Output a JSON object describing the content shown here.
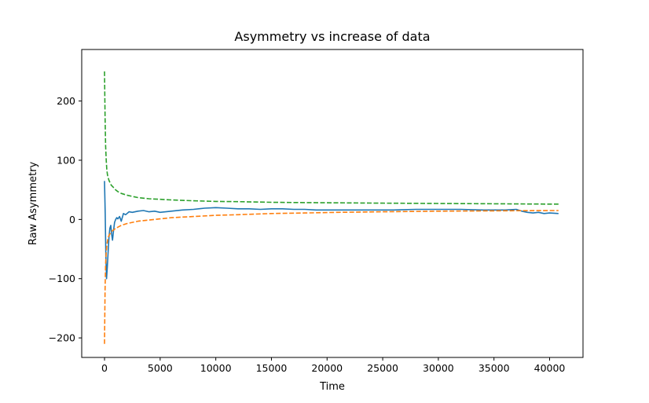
{
  "chart_data": {
    "type": "line",
    "title": "Asymmetry vs increase of data",
    "xlabel": "Time",
    "ylabel": "Raw Asymmetry",
    "xlim": [
      -2050,
      43000
    ],
    "ylim": [
      -233,
      287
    ],
    "xticks": [
      0,
      5000,
      10000,
      15000,
      20000,
      25000,
      30000,
      35000,
      40000
    ],
    "yticks": [
      -200,
      -100,
      0,
      100,
      200
    ],
    "grid": false,
    "legend": "none",
    "series": [
      {
        "color": "#1f77b4",
        "dash": "solid",
        "x": [
          0,
          60,
          120,
          180,
          250,
          320,
          400,
          480,
          560,
          640,
          720,
          800,
          900,
          1000,
          1100,
          1200,
          1350,
          1500,
          1700,
          1900,
          2200,
          2500,
          3000,
          3500,
          4000,
          4500,
          5000,
          6000,
          7000,
          8000,
          9000,
          10000,
          11000,
          12000,
          13000,
          14000,
          15000,
          16000,
          17000,
          18000,
          19000,
          20000,
          22000,
          24000,
          26000,
          28000,
          30000,
          32000,
          34000,
          36000,
          37000,
          37500,
          38000,
          38500,
          39000,
          39500,
          40000,
          40800
        ],
        "y": [
          65,
          10,
          -60,
          -100,
          -80,
          -55,
          -30,
          -15,
          -10,
          -25,
          -35,
          -20,
          -5,
          0,
          3,
          1,
          5,
          -3,
          10,
          8,
          13,
          12,
          14,
          15,
          13,
          14,
          12,
          14,
          16,
          17,
          19,
          20,
          19,
          18,
          18,
          17,
          18,
          18,
          17,
          17,
          16,
          16,
          16,
          16,
          16,
          17,
          17,
          17,
          16,
          16,
          17,
          14,
          12,
          11,
          12,
          10,
          11,
          10
        ]
      },
      {
        "color": "#ff7f0e",
        "dash": "dashed",
        "x": [
          0,
          50,
          100,
          150,
          200,
          250,
          300,
          400,
          500,
          600,
          700,
          800,
          1000,
          1200,
          1500,
          2000,
          2500,
          3000,
          4000,
          5000,
          6000,
          8000,
          10000,
          12000,
          15000,
          18000,
          21000,
          25000,
          30000,
          35000,
          40000,
          40800
        ],
        "y": [
          -210,
          -120,
          -75,
          -55,
          -45,
          -38,
          -32,
          -27,
          -24,
          -21,
          -19,
          -18,
          -15,
          -13,
          -10,
          -7,
          -5,
          -3,
          -1,
          1,
          3,
          5,
          7,
          8,
          10,
          11,
          12,
          13,
          14,
          14.5,
          15,
          15
        ]
      },
      {
        "color": "#2ca02c",
        "dash": "dashed",
        "x": [
          0,
          50,
          100,
          150,
          200,
          250,
          300,
          400,
          500,
          600,
          700,
          800,
          1000,
          1200,
          1500,
          2000,
          2500,
          3000,
          4000,
          5000,
          6000,
          8000,
          10000,
          12000,
          15000,
          18000,
          21000,
          25000,
          30000,
          35000,
          40000,
          40800
        ],
        "y": [
          250,
          175,
          125,
          100,
          85,
          77,
          72,
          66,
          62,
          58,
          56,
          54,
          50,
          47,
          44,
          41,
          39,
          37,
          35,
          34,
          33,
          31.5,
          30.5,
          30,
          29,
          28.5,
          28,
          27.5,
          27,
          26.5,
          26,
          26
        ]
      }
    ]
  }
}
